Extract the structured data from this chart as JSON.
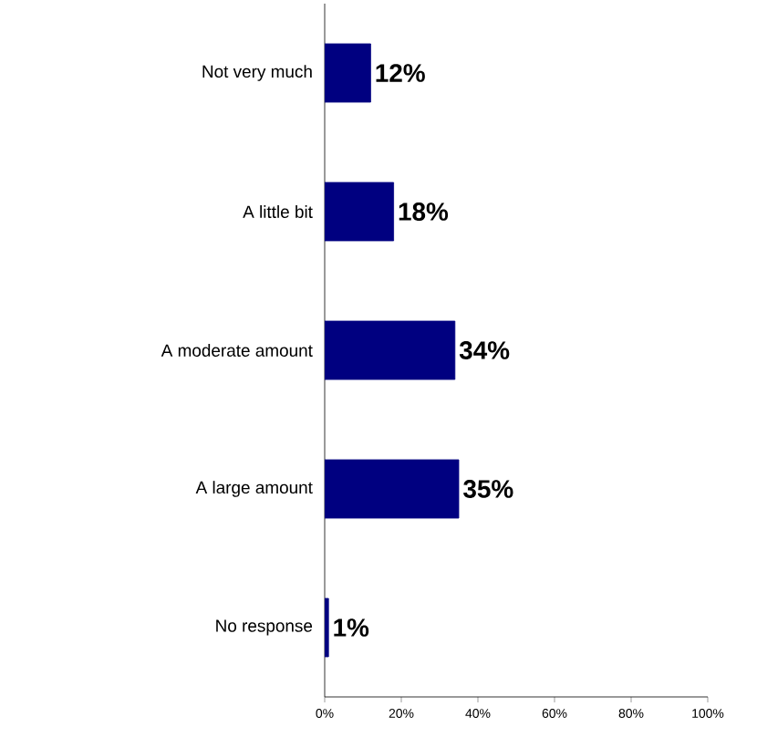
{
  "chart_data": {
    "type": "bar",
    "orientation": "horizontal",
    "categories": [
      "Not very much",
      "A little bit",
      "A moderate amount",
      "A large amount",
      "No response"
    ],
    "values": [
      12,
      18,
      34,
      35,
      1
    ],
    "value_labels": [
      "12%",
      "18%",
      "34%",
      "35%",
      "1%"
    ],
    "color": "#000080",
    "xlim": [
      0,
      100
    ],
    "xticks": [
      {
        "value": 0,
        "label": "0%"
      },
      {
        "value": 20,
        "label": "20%"
      },
      {
        "value": 40,
        "label": "40%"
      },
      {
        "value": 60,
        "label": "60%"
      },
      {
        "value": 80,
        "label": "80%"
      },
      {
        "value": 100,
        "label": "100%"
      }
    ],
    "grid": false
  }
}
